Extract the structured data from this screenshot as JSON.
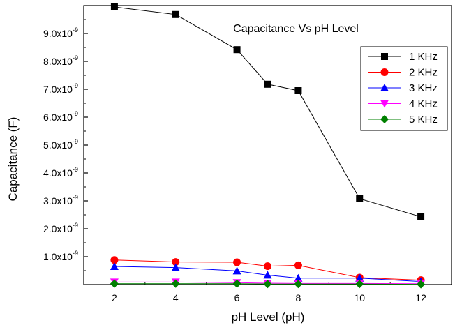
{
  "chart_data": {
    "type": "line",
    "title": "Capacitance Vs pH Level",
    "xlabel": "pH Level (pH)",
    "ylabel": "Capacitance (F)",
    "xlim": [
      1,
      13
    ],
    "ylim": [
      0,
      1e-08
    ],
    "x_ticks": [
      2,
      4,
      6,
      8,
      10,
      12
    ],
    "x_tick_labels": [
      "2",
      "4",
      "6",
      "8",
      "10",
      "12"
    ],
    "y_ticks": [
      1e-09,
      2e-09,
      3e-09,
      4e-09,
      5e-09,
      6e-09,
      7e-09,
      8e-09,
      9e-09
    ],
    "y_tick_labels": [
      {
        "mantissa": "1.0x10",
        "exp": "-9"
      },
      {
        "mantissa": "2.0x10",
        "exp": "-9"
      },
      {
        "mantissa": "3.0x10",
        "exp": "-9"
      },
      {
        "mantissa": "4.0x10",
        "exp": "-9"
      },
      {
        "mantissa": "5.0x10",
        "exp": "-9"
      },
      {
        "mantissa": "6.0x10",
        "exp": "-9"
      },
      {
        "mantissa": "7.0x10",
        "exp": "-9"
      },
      {
        "mantissa": "8.0x10",
        "exp": "-9"
      },
      {
        "mantissa": "9.0x10",
        "exp": "-9"
      }
    ],
    "x": [
      2,
      4,
      6,
      7,
      8,
      10,
      12
    ],
    "series": [
      {
        "name": "1 KHz",
        "color": "#000000",
        "marker": "square",
        "values": [
          9.95e-09,
          9.68e-09,
          8.42e-09,
          7.18e-09,
          6.95e-09,
          3.08e-09,
          2.43e-09
        ]
      },
      {
        "name": "2 KHz",
        "color": "#ff0000",
        "marker": "circle",
        "values": [
          8.8e-10,
          8.1e-10,
          8e-10,
          6.6e-10,
          6.9e-10,
          2.5e-10,
          1.6e-10
        ]
      },
      {
        "name": "3 KHz",
        "color": "#0000ff",
        "marker": "triangle-up",
        "values": [
          6.5e-10,
          6.1e-10,
          4.9e-10,
          3.4e-10,
          2.3e-10,
          2.3e-10,
          1.1e-10
        ]
      },
      {
        "name": "4 KHz",
        "color": "#ff00ff",
        "marker": "triangle-down",
        "values": [
          9e-11,
          9e-11,
          7e-11,
          5e-11,
          4e-11,
          4e-11,
          3e-11
        ]
      },
      {
        "name": "5 KHz",
        "color": "#008000",
        "marker": "diamond",
        "values": [
          3e-11,
          3e-11,
          3e-11,
          2e-11,
          2e-11,
          2e-11,
          1e-11
        ]
      }
    ],
    "grid": false,
    "legend_position": "top-right"
  }
}
